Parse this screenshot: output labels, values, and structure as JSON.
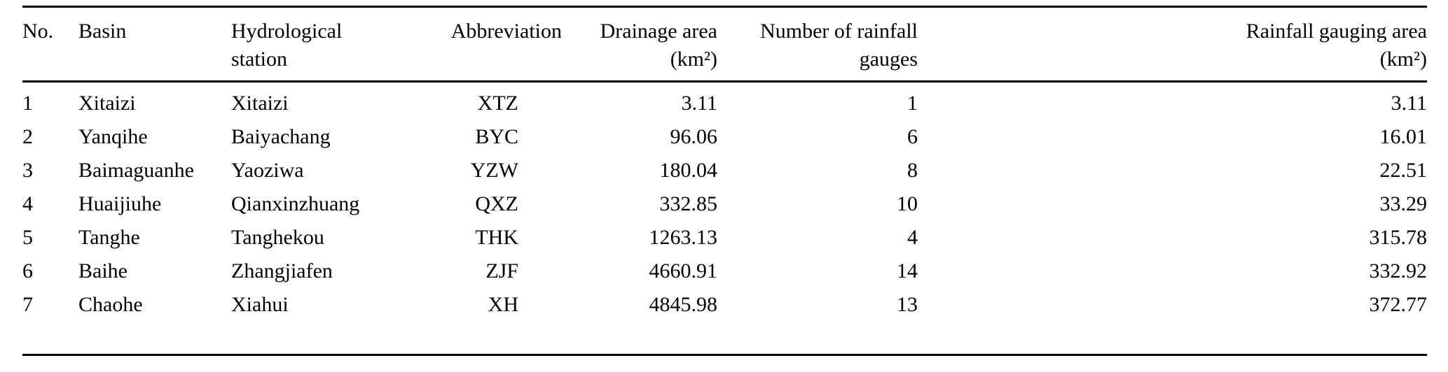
{
  "table": {
    "columns": [
      {
        "line1": "No.",
        "line2": ""
      },
      {
        "line1": "Basin",
        "line2": ""
      },
      {
        "line1": "Hydrological",
        "line2": "station"
      },
      {
        "line1": "Abbreviation",
        "line2": ""
      },
      {
        "line1": "Drainage area",
        "line2": "(km²)"
      },
      {
        "line1": "Number of rainfall",
        "line2": "gauges"
      },
      {
        "line1": "Rainfall gauging area",
        "line2": "(km²)"
      }
    ],
    "rows": [
      [
        "1",
        "Xitaizi",
        "Xitaizi",
        "XTZ",
        "3.11",
        "1",
        "3.11"
      ],
      [
        "2",
        "Yanqihe",
        "Baiyachang",
        "BYC",
        "96.06",
        "6",
        "16.01"
      ],
      [
        "3",
        "Baimaguanhe",
        "Yaoziwa",
        "YZW",
        "180.04",
        "8",
        "22.51"
      ],
      [
        "4",
        "Huaijiuhe",
        "Qianxinzhuang",
        "QXZ",
        "332.85",
        "10",
        "33.29"
      ],
      [
        "5",
        "Tanghe",
        "Tanghekou",
        "THK",
        "1263.13",
        "4",
        "315.78"
      ],
      [
        "6",
        "Baihe",
        "Zhangjiafen",
        "ZJF",
        "4660.91",
        "14",
        "332.92"
      ],
      [
        "7",
        "Chaohe",
        "Xiahui",
        "XH",
        "4845.98",
        "13",
        "372.77"
      ]
    ]
  }
}
